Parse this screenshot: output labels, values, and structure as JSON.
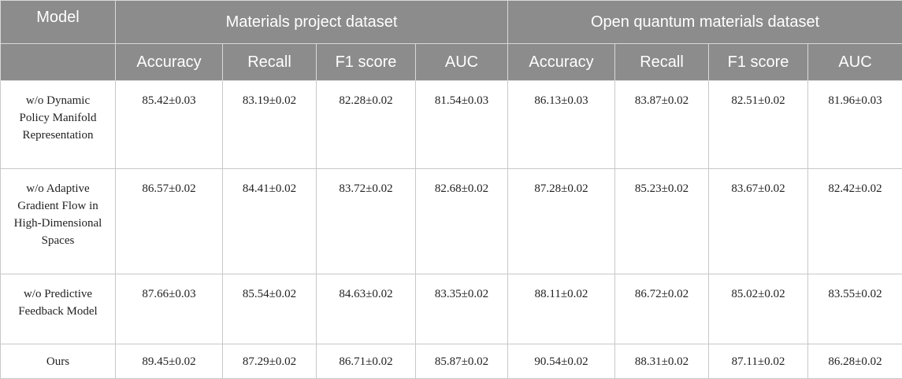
{
  "table": {
    "header": {
      "model": "Model",
      "groups": [
        "Materials project dataset",
        "Open quantum materials dataset"
      ],
      "metrics": [
        "Accuracy",
        "Recall",
        "F1 score",
        "AUC",
        "Accuracy",
        "Recall",
        "F1 score",
        "AUC"
      ]
    },
    "rows": [
      {
        "model": "w/o Dynamic Policy Manifold Representation",
        "values": [
          "85.42±0.03",
          "83.19±0.02",
          "82.28±0.02",
          "81.54±0.03",
          "86.13±0.03",
          "83.87±0.02",
          "82.51±0.02",
          "81.96±0.03"
        ]
      },
      {
        "model": "w/o Adaptive Gradient Flow in High-Dimensional Spaces",
        "values": [
          "86.57±0.02",
          "84.41±0.02",
          "83.72±0.02",
          "82.68±0.02",
          "87.28±0.02",
          "85.23±0.02",
          "83.67±0.02",
          "82.42±0.02"
        ]
      },
      {
        "model": "w/o Predictive Feedback Model",
        "values": [
          "87.66±0.03",
          "85.54±0.02",
          "84.63±0.02",
          "83.35±0.02",
          "88.11±0.02",
          "86.72±0.02",
          "85.02±0.02",
          "83.55±0.02"
        ]
      },
      {
        "model": "Ours",
        "values": [
          "89.45±0.02",
          "87.29±0.02",
          "86.71±0.02",
          "85.87±0.02",
          "90.54±0.02",
          "88.31±0.02",
          "87.11±0.02",
          "86.28±0.02"
        ]
      }
    ]
  }
}
